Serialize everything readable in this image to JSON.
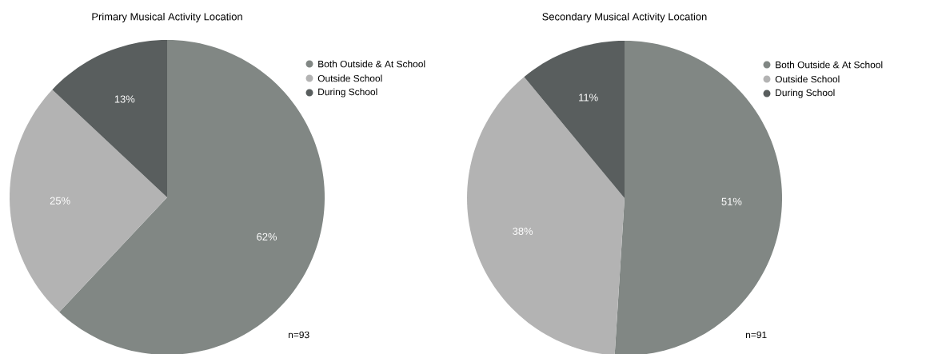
{
  "chart_data": [
    {
      "type": "pie",
      "title": "Primary Musical Activity Location",
      "categories": [
        "Both Outside & At School",
        "Outside School",
        "During School"
      ],
      "values": [
        62,
        25,
        13
      ],
      "value_labels": [
        "62%",
        "25%",
        "13%"
      ],
      "colors": [
        "#818784",
        "#b3b3b3",
        "#595e5e"
      ],
      "legend": "top right",
      "annotations": [
        "n=93"
      ]
    },
    {
      "type": "pie",
      "title": "Secondary Musical Activity Location",
      "categories": [
        "Both Outside & At School",
        "Outside School",
        "During School"
      ],
      "values": [
        51,
        38,
        11
      ],
      "value_labels": [
        "51%",
        "38%",
        "11%"
      ],
      "colors": [
        "#818784",
        "#b3b3b3",
        "#595e5e"
      ],
      "legend": "top right",
      "annotations": [
        "n=91"
      ]
    }
  ]
}
